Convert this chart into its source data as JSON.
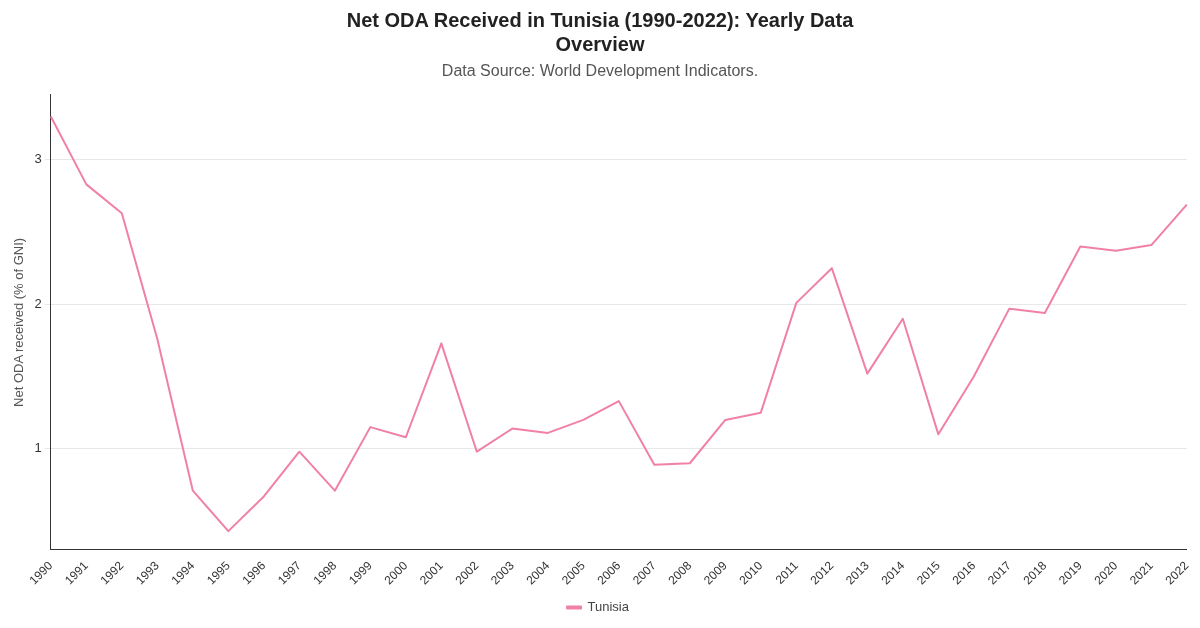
{
  "chart_data": {
    "type": "line",
    "title": "Net ODA Received in Tunisia (1990-2022): Yearly Data Overview",
    "subtitle": "Data Source: World Development Indicators.",
    "ylabel": "Net ODA received (% of GNI)",
    "categories": [
      "1990",
      "1991",
      "1992",
      "1993",
      "1994",
      "1995",
      "1996",
      "1997",
      "1998",
      "1999",
      "2000",
      "2001",
      "2002",
      "2003",
      "2004",
      "2005",
      "2006",
      "2007",
      "2008",
      "2009",
      "2010",
      "2011",
      "2012",
      "2013",
      "2014",
      "2015",
      "2016",
      "2017",
      "2018",
      "2019",
      "2020",
      "2021",
      "2022"
    ],
    "series": [
      {
        "name": "Tunisia",
        "color": "#f080a8",
        "values": [
          3.3,
          2.83,
          2.63,
          1.76,
          0.71,
          0.43,
          0.67,
          0.98,
          0.71,
          1.15,
          1.08,
          1.73,
          0.98,
          1.14,
          1.11,
          1.2,
          1.33,
          0.89,
          0.9,
          1.2,
          1.25,
          2.01,
          2.25,
          1.52,
          1.9,
          1.1,
          1.5,
          1.97,
          1.94,
          2.4,
          2.37,
          2.41,
          2.69
        ]
      }
    ],
    "ylim": [
      0.3,
      3.45
    ],
    "yticks": [
      1,
      2,
      3
    ],
    "grid": "y",
    "legend": "bottom",
    "marker": "none",
    "line_style": "solid"
  }
}
